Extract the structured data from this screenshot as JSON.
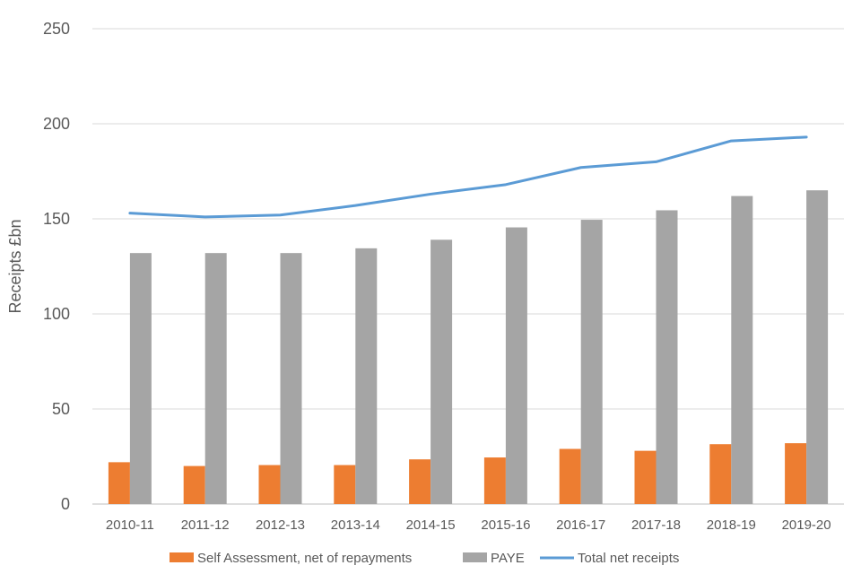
{
  "chart_data": {
    "type": "bar+line",
    "title": "",
    "xlabel": "",
    "ylabel": "Receipts £bn",
    "ylim": [
      0,
      250
    ],
    "yticks": [
      0,
      50,
      100,
      150,
      200,
      250
    ],
    "grid": true,
    "legend_position": "bottom",
    "categories": [
      "2010-11",
      "2011-12",
      "2012-13",
      "2013-14",
      "2014-15",
      "2015-16",
      "2016-17",
      "2017-18",
      "2018-19",
      "2019-20"
    ],
    "series": [
      {
        "name": "Self Assessment, net of repayments",
        "kind": "bar",
        "color": "#ED7D31",
        "values": [
          22,
          20,
          20.5,
          20.5,
          23.5,
          24.5,
          29,
          28,
          31.5,
          32
        ]
      },
      {
        "name": "PAYE",
        "kind": "bar",
        "color": "#A5A5A5",
        "values": [
          132,
          132,
          132,
          134.5,
          139,
          145.5,
          149.5,
          154.5,
          162,
          165
        ]
      },
      {
        "name": "Total net receipts",
        "kind": "line",
        "color": "#5B9BD5",
        "values": [
          153,
          151,
          152,
          157,
          163,
          168,
          177,
          180,
          191,
          193
        ]
      }
    ]
  }
}
